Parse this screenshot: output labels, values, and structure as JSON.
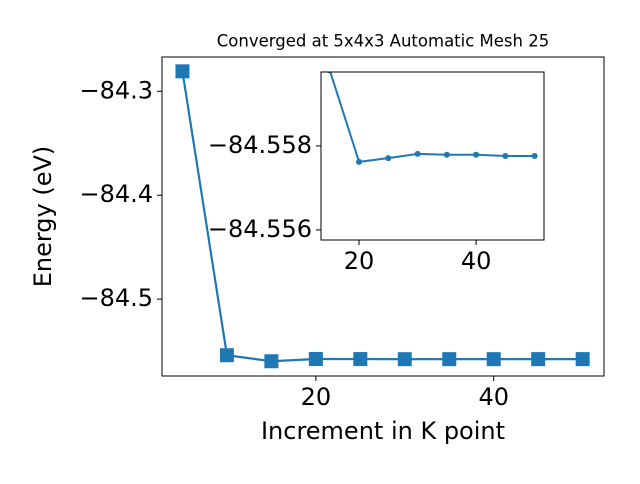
{
  "chart_data": [
    {
      "type": "line",
      "title": "Converged at 5x4x3 Automatic Mesh 25",
      "x_label": "Increment in K point",
      "y_label": "Energy (eV)",
      "x": [
        5,
        10,
        15,
        20,
        25,
        30,
        35,
        40,
        45,
        50
      ],
      "series": [
        {
          "color": "#1f77b4",
          "marker": "square",
          "values": [
            -84.2808,
            -84.554,
            -84.5598,
            -84.55762,
            -84.55771,
            -84.55781,
            -84.55779,
            -84.55779,
            -84.55776,
            -84.55776
          ]
        }
      ],
      "xlim": [
        2.7,
        52.4
      ],
      "ylim": [
        -84.574,
        -84.267
      ],
      "xticks": [
        20,
        40
      ],
      "yticks": [
        {
          "value": -84.3,
          "label": "−84.3"
        },
        {
          "value": -84.4,
          "label": "−84.4"
        },
        {
          "value": -84.5,
          "label": "−84.5"
        }
      ]
    },
    {
      "type": "line",
      "x": [
        15,
        20,
        25,
        30,
        35,
        40,
        45,
        50
      ],
      "series": [
        {
          "color": "#1f77b4",
          "marker": "circle",
          "values": [
            -84.5598,
            -84.55762,
            -84.55771,
            -84.55781,
            -84.55779,
            -84.55779,
            -84.55776,
            -84.55776
          ]
        }
      ],
      "xlim": [
        13.5,
        51.6
      ],
      "ylim": [
        -84.55576,
        -84.55976
      ],
      "xticks": [
        20,
        40
      ],
      "yticks": [
        {
          "value": -84.558,
          "label": "−84.558"
        },
        {
          "value": -84.556,
          "label": "−84.556"
        }
      ]
    }
  ]
}
